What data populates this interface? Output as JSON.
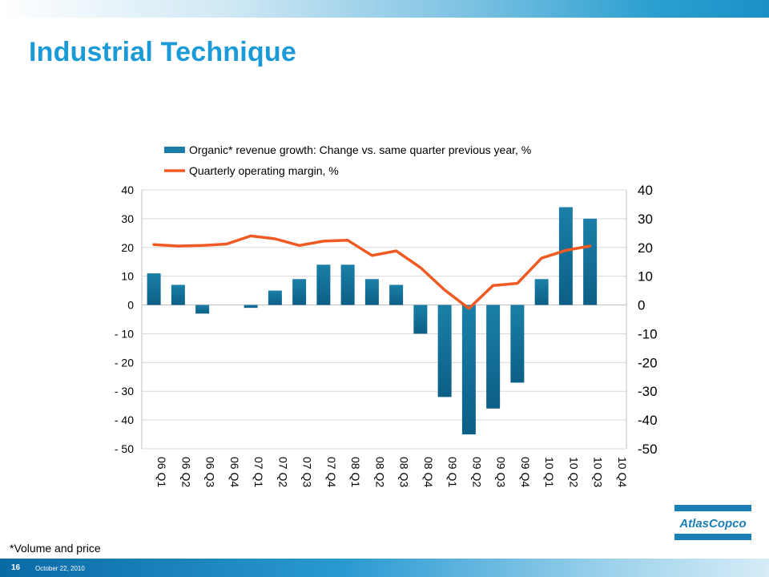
{
  "slide": {
    "title": "Industrial Technique",
    "footnote": "*Volume and price",
    "page_number": "16",
    "date": "October 22, 2010",
    "logo_text": "AtlasCopco"
  },
  "colors": {
    "title": "#1a9ad6",
    "bar": "#1a7fa8",
    "bar_dark": "#0c5f86",
    "line": "#f05a22",
    "grid": "#d9d9d9"
  },
  "chart_data": {
    "type": "bar",
    "categories": [
      "06 Q1",
      "06 Q2",
      "06 Q3",
      "06 Q4",
      "07 Q1",
      "07 Q2",
      "07 Q3",
      "07 Q4",
      "08 Q1",
      "08 Q2",
      "08 Q3",
      "08 Q4",
      "09 Q1",
      "09 Q2",
      "09 Q3",
      "09 Q4",
      "10 Q1",
      "10 Q2",
      "10 Q3",
      "10 Q4"
    ],
    "series": [
      {
        "name": "Organic* revenue growth: Change vs. same quarter previous year, %",
        "type": "bar",
        "values": [
          11,
          7,
          -3,
          0,
          -1,
          5,
          9,
          14,
          14,
          9,
          7,
          -10,
          -32,
          -45,
          -36,
          -27,
          9,
          34,
          30,
          null
        ]
      },
      {
        "name": "Quarterly operating margin, %",
        "type": "line",
        "values": [
          21,
          20.5,
          20.7,
          21.2,
          24,
          23,
          20.7,
          22.2,
          22.5,
          17.2,
          18.8,
          13,
          5.2,
          -1.2,
          6.8,
          7.5,
          16.3,
          19,
          20.5,
          null
        ]
      }
    ],
    "ylim": [
      -50,
      40
    ],
    "yticks_left": [
      "40",
      "30",
      "20",
      "10",
      "0",
      "- 10",
      "- 20",
      "- 30",
      "- 40",
      "- 50"
    ],
    "yticks_right": [
      "40",
      "30",
      "20",
      "10",
      "0",
      "-10",
      "-20",
      "-30",
      "-40",
      "-50"
    ],
    "legend_position": "top",
    "grid": true
  }
}
